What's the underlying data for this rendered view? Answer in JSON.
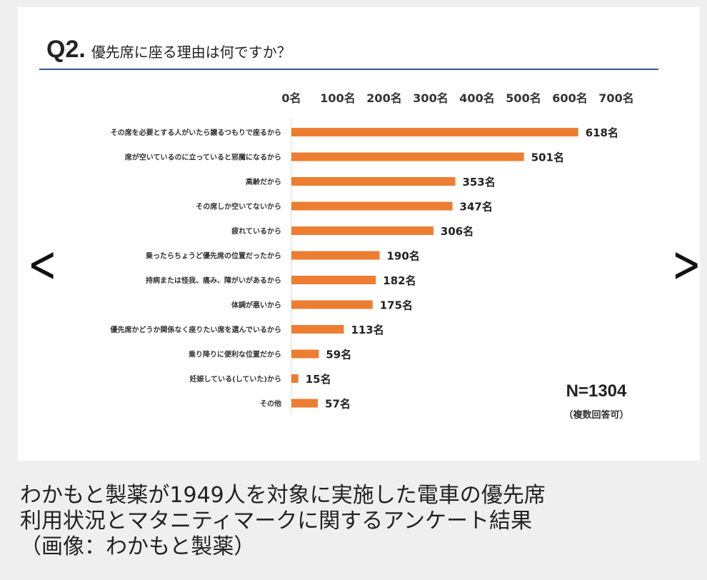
{
  "title": {
    "q": "Q2.",
    "text": "優先席に座る理由は何ですか？"
  },
  "chart_data": {
    "type": "bar",
    "orientation": "horizontal",
    "title": "Q2. 優先席に座る理由は何ですか？",
    "categories": [
      "その席を必要とする人がいたら譲るつもりで座るから",
      "席が空いているのに立っていると邪魔になるから",
      "高齢だから",
      "その席しか空いてないから",
      "疲れているから",
      "乗ったらちょうど優先席の位置だったから",
      "持病または怪我、痛み、障がいがあるから",
      "体調が悪いから",
      "優先席かどうか関係なく座りたい席を選んでいるから",
      "乗り降りに便利な位置だから",
      "妊娠している(していた)から",
      "その他"
    ],
    "values": [
      618,
      501,
      353,
      347,
      306,
      190,
      182,
      175,
      113,
      59,
      15,
      57
    ],
    "unit": "名",
    "xticks": [
      0,
      100,
      200,
      300,
      400,
      500,
      600,
      700
    ],
    "xlim": [
      0,
      700
    ],
    "bar_color": "#ed7d31",
    "grid": false
  },
  "annotation": {
    "n": "N=1304",
    "note": "（複数回答可）"
  },
  "nav": {
    "prev": "<",
    "next": ">"
  },
  "caption": [
    "わかもと製薬が1949人を対象に実施した電車の優先席",
    "利用状況とマタニティマークに関するアンケート結果",
    "（画像：わかもと製薬）"
  ]
}
